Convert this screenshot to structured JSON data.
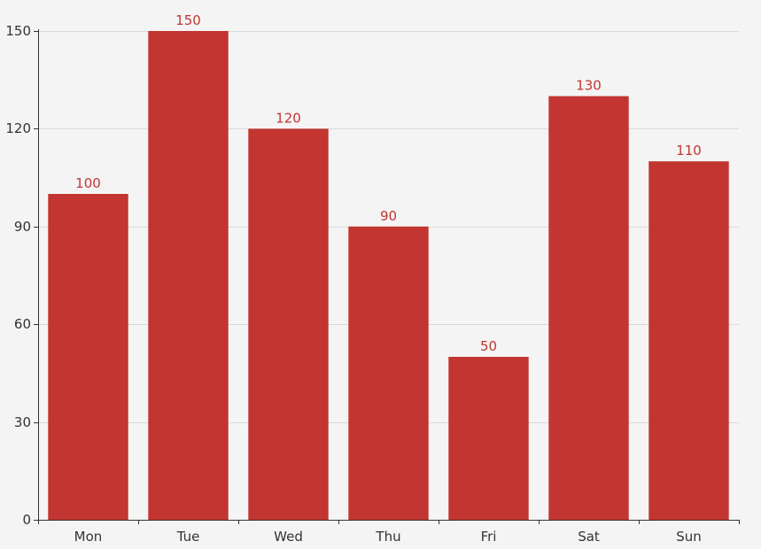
{
  "chart_data": {
    "type": "bar",
    "categories": [
      "Mon",
      "Tue",
      "Wed",
      "Thu",
      "Fri",
      "Sat",
      "Sun"
    ],
    "values": [
      100,
      150,
      120,
      90,
      50,
      130,
      110
    ],
    "y_ticks": [
      0,
      30,
      60,
      90,
      120,
      150
    ],
    "ylim": [
      0,
      150
    ],
    "grid": true,
    "data_labels": true,
    "bar_color": "#c23531",
    "label_color": "#c23531"
  }
}
